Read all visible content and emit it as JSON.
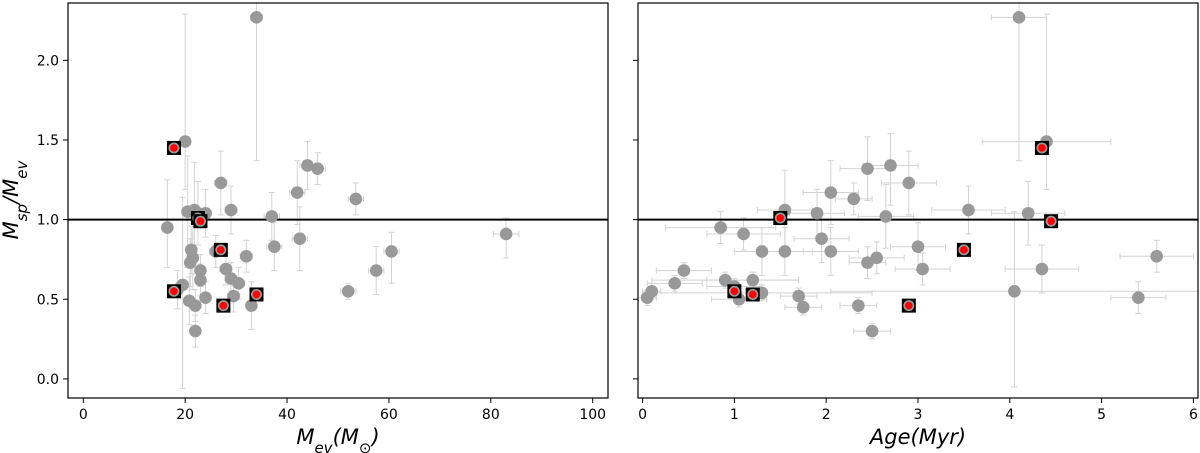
{
  "chart_data": [
    {
      "type": "scatter",
      "xlabel": "M_ev(M_⊙)",
      "ylabel": "M_sp/M_ev",
      "xlim": [
        -3,
        103
      ],
      "ylim": [
        -0.12,
        2.36
      ],
      "xticks": [
        "0",
        "20",
        "40",
        "60",
        "80",
        "100"
      ],
      "yticks": [
        "0.0",
        "0.5",
        "1.0",
        "1.5",
        "2.0"
      ],
      "reference_line": 1.0,
      "grid": false,
      "colors": {
        "points": "#999999",
        "errorbars": "#d3d3d3",
        "highlight_fill": "#ff0000",
        "highlight_box": "#000000",
        "reference_line": "#000000"
      },
      "points": [
        {
          "x": 16.5,
          "y": 0.95,
          "xerr": 1.0,
          "yerr": [
            0.25,
            0.3
          ]
        },
        {
          "x": 18.5,
          "y": 0.56,
          "xerr": 1.0,
          "yerr": [
            0.12,
            0.12
          ]
        },
        {
          "x": 19.5,
          "y": 0.59,
          "xerr": 1.2,
          "yerr": [
            0.65,
            0.55
          ]
        },
        {
          "x": 20.0,
          "y": 1.49,
          "xerr": 1.0,
          "yerr": [
            0.3,
            0.8
          ]
        },
        {
          "x": 20.5,
          "y": 1.05,
          "xerr": 1.2,
          "yerr": [
            0.35,
            0.35
          ]
        },
        {
          "x": 20.8,
          "y": 0.49,
          "xerr": 1.0,
          "yerr": [
            0.15,
            0.15
          ]
        },
        {
          "x": 21.0,
          "y": 0.73,
          "xerr": 1.0,
          "yerr": [
            0.15,
            0.15
          ]
        },
        {
          "x": 21.2,
          "y": 0.81,
          "xerr": 1.0,
          "yerr": [
            0.15,
            0.15
          ]
        },
        {
          "x": 21.5,
          "y": 0.76,
          "xerr": 1.0,
          "yerr": [
            0.2,
            0.2
          ]
        },
        {
          "x": 21.8,
          "y": 1.06,
          "xerr": 1.2,
          "yerr": [
            0.3,
            0.3
          ]
        },
        {
          "x": 22.0,
          "y": 0.46,
          "xerr": 1.0,
          "yerr": [
            0.1,
            0.1
          ]
        },
        {
          "x": 22.0,
          "y": 0.3,
          "xerr": 1.0,
          "yerr": [
            0.1,
            0.1
          ]
        },
        {
          "x": 22.5,
          "y": 1.04,
          "xerr": 1.2,
          "yerr": [
            0.2,
            0.2
          ]
        },
        {
          "x": 23.0,
          "y": 0.62,
          "xerr": 1.0,
          "yerr": [
            0.1,
            0.1
          ]
        },
        {
          "x": 23.0,
          "y": 0.68,
          "xerr": 1.0,
          "yerr": [
            0.1,
            0.1
          ]
        },
        {
          "x": 24.0,
          "y": 0.51,
          "xerr": 1.0,
          "yerr": [
            0.1,
            0.1
          ]
        },
        {
          "x": 24.0,
          "y": 1.04,
          "xerr": 1.2,
          "yerr": [
            0.15,
            0.15
          ]
        },
        {
          "x": 26.0,
          "y": 0.8,
          "xerr": 1.2,
          "yerr": [
            0.1,
            0.1
          ]
        },
        {
          "x": 27.0,
          "y": 1.23,
          "xerr": 1.2,
          "yerr": [
            0.2,
            0.2
          ]
        },
        {
          "x": 28.0,
          "y": 0.69,
          "xerr": 1.2,
          "yerr": [
            0.1,
            0.1
          ]
        },
        {
          "x": 29.0,
          "y": 1.06,
          "xerr": 1.2,
          "yerr": [
            0.15,
            0.15
          ]
        },
        {
          "x": 29.0,
          "y": 0.63,
          "xerr": 1.2,
          "yerr": [
            0.1,
            0.1
          ]
        },
        {
          "x": 29.5,
          "y": 0.52,
          "xerr": 1.2,
          "yerr": [
            0.1,
            0.1
          ]
        },
        {
          "x": 30.5,
          "y": 0.6,
          "xerr": 1.2,
          "yerr": [
            0.1,
            0.1
          ]
        },
        {
          "x": 32.0,
          "y": 0.77,
          "xerr": 1.2,
          "yerr": [
            0.1,
            0.1
          ]
        },
        {
          "x": 33.0,
          "y": 0.46,
          "xerr": 1.0,
          "yerr": [
            0.15,
            0.15
          ]
        },
        {
          "x": 34.0,
          "y": 2.27,
          "xerr": 1.2,
          "yerr": [
            0.9,
            0.6
          ]
        },
        {
          "x": 37.0,
          "y": 1.02,
          "xerr": 1.5,
          "yerr": [
            0.15,
            0.15
          ]
        },
        {
          "x": 37.5,
          "y": 0.83,
          "xerr": 1.5,
          "yerr": [
            0.15,
            0.15
          ]
        },
        {
          "x": 42.0,
          "y": 1.17,
          "xerr": 1.5,
          "yerr": [
            0.2,
            0.2
          ]
        },
        {
          "x": 42.5,
          "y": 0.88,
          "xerr": 1.5,
          "yerr": [
            0.2,
            0.2
          ]
        },
        {
          "x": 44.0,
          "y": 1.34,
          "xerr": 1.5,
          "yerr": [
            0.15,
            0.15
          ]
        },
        {
          "x": 46.0,
          "y": 1.32,
          "xerr": 1.5,
          "yerr": [
            0.1,
            0.1
          ]
        },
        {
          "x": 52.0,
          "y": 0.55,
          "xerr": 1.5,
          "yerr": [
            0.05,
            0.05
          ]
        },
        {
          "x": 53.5,
          "y": 1.13,
          "xerr": 1.5,
          "yerr": [
            0.1,
            0.1
          ]
        },
        {
          "x": 57.5,
          "y": 0.68,
          "xerr": 1.5,
          "yerr": [
            0.15,
            0.15
          ]
        },
        {
          "x": 60.5,
          "y": 0.8,
          "xerr": 1.5,
          "yerr": [
            0.2,
            0.12
          ]
        },
        {
          "x": 83.0,
          "y": 0.91,
          "xerr": 2.5,
          "yerr": [
            0.15,
            0.1
          ]
        }
      ],
      "highlighted": [
        {
          "x": 17.8,
          "y": 1.45
        },
        {
          "x": 17.8,
          "y": 0.55
        },
        {
          "x": 22.5,
          "y": 1.01
        },
        {
          "x": 23.0,
          "y": 0.99
        },
        {
          "x": 27.0,
          "y": 0.81
        },
        {
          "x": 27.5,
          "y": 0.46
        },
        {
          "x": 34.0,
          "y": 0.53
        }
      ]
    },
    {
      "type": "scatter",
      "xlabel": "Age(Myr)",
      "ylabel": "",
      "xlim": [
        -0.05,
        6.05
      ],
      "ylim": [
        -0.12,
        2.36
      ],
      "xticks": [
        "0",
        "1",
        "2",
        "3",
        "4",
        "5",
        "6"
      ],
      "yticks": [
        "0.0",
        "0.5",
        "1.0",
        "1.5",
        "2.0"
      ],
      "reference_line": 1.0,
      "grid": false,
      "points": [
        {
          "x": 0.05,
          "y": 0.51,
          "xerr": 0.1,
          "yerr": [
            0.05,
            0.05
          ]
        },
        {
          "x": 0.1,
          "y": 0.55,
          "xerr": 0.1,
          "yerr": [
            0.05,
            0.05
          ]
        },
        {
          "x": 0.35,
          "y": 0.6,
          "xerr": 0.3,
          "yerr": [
            0.05,
            0.05
          ]
        },
        {
          "x": 0.45,
          "y": 0.68,
          "xerr": 0.3,
          "yerr": [
            0.05,
            0.05
          ]
        },
        {
          "x": 0.85,
          "y": 0.95,
          "xerr": 0.6,
          "yerr": [
            0.1,
            0.1
          ]
        },
        {
          "x": 0.9,
          "y": 0.62,
          "xerr": 0.8,
          "yerr": [
            0.05,
            0.05
          ]
        },
        {
          "x": 1.0,
          "y": 0.58,
          "xerr": 0.3,
          "yerr": [
            0.05,
            0.05
          ]
        },
        {
          "x": 1.05,
          "y": 0.5,
          "xerr": 0.3,
          "yerr": [
            0.05,
            0.05
          ]
        },
        {
          "x": 1.1,
          "y": 0.91,
          "xerr": 0.4,
          "yerr": [
            0.1,
            0.1
          ]
        },
        {
          "x": 1.2,
          "y": 0.62,
          "xerr": 0.5,
          "yerr": [
            0.05,
            0.05
          ]
        },
        {
          "x": 1.3,
          "y": 0.54,
          "xerr": 1.2,
          "yerr": [
            0.05,
            0.05
          ]
        },
        {
          "x": 1.3,
          "y": 0.8,
          "xerr": 0.3,
          "yerr": [
            0.15,
            0.15
          ]
        },
        {
          "x": 1.55,
          "y": 1.06,
          "xerr": 0.3,
          "yerr": [
            0.25,
            0.25
          ]
        },
        {
          "x": 1.55,
          "y": 0.8,
          "xerr": 0.3,
          "yerr": [
            0.15,
            0.15
          ]
        },
        {
          "x": 1.7,
          "y": 0.52,
          "xerr": 0.2,
          "yerr": [
            0.05,
            0.05
          ]
        },
        {
          "x": 1.75,
          "y": 0.45,
          "xerr": 0.2,
          "yerr": [
            0.05,
            0.05
          ]
        },
        {
          "x": 1.9,
          "y": 1.04,
          "xerr": 0.3,
          "yerr": [
            0.15,
            0.15
          ]
        },
        {
          "x": 1.95,
          "y": 0.88,
          "xerr": 0.3,
          "yerr": [
            0.15,
            0.15
          ]
        },
        {
          "x": 2.05,
          "y": 0.8,
          "xerr": 0.3,
          "yerr": [
            0.15,
            0.15
          ]
        },
        {
          "x": 2.05,
          "y": 1.17,
          "xerr": 0.3,
          "yerr": [
            0.2,
            0.2
          ]
        },
        {
          "x": 2.3,
          "y": 1.13,
          "xerr": 0.2,
          "yerr": [
            0.1,
            0.1
          ]
        },
        {
          "x": 2.35,
          "y": 0.46,
          "xerr": 0.2,
          "yerr": [
            0.05,
            0.05
          ]
        },
        {
          "x": 2.45,
          "y": 1.32,
          "xerr": 0.3,
          "yerr": [
            0.2,
            0.2
          ]
        },
        {
          "x": 2.45,
          "y": 0.73,
          "xerr": 0.2,
          "yerr": [
            0.1,
            0.1
          ]
        },
        {
          "x": 2.5,
          "y": 0.3,
          "xerr": 0.2,
          "yerr": [
            0.05,
            0.05
          ]
        },
        {
          "x": 2.55,
          "y": 0.76,
          "xerr": 0.3,
          "yerr": [
            0.1,
            0.1
          ]
        },
        {
          "x": 2.65,
          "y": 1.02,
          "xerr": 0.3,
          "yerr": [
            0.2,
            0.2
          ]
        },
        {
          "x": 2.7,
          "y": 1.34,
          "xerr": 0.3,
          "yerr": [
            0.25,
            0.2
          ]
        },
        {
          "x": 2.9,
          "y": 1.23,
          "xerr": 0.3,
          "yerr": [
            0.2,
            0.2
          ]
        },
        {
          "x": 3.0,
          "y": 0.83,
          "xerr": 0.3,
          "yerr": [
            0.15,
            0.15
          ]
        },
        {
          "x": 3.05,
          "y": 0.69,
          "xerr": 0.3,
          "yerr": [
            0.1,
            0.1
          ]
        },
        {
          "x": 3.55,
          "y": 1.06,
          "xerr": 0.4,
          "yerr": [
            0.15,
            0.15
          ]
        },
        {
          "x": 4.05,
          "y": 0.55,
          "xerr": 2.0,
          "yerr": [
            0.6,
            0.5
          ]
        },
        {
          "x": 4.1,
          "y": 2.27,
          "xerr": 0.3,
          "yerr": [
            0.9,
            0.6
          ]
        },
        {
          "x": 4.2,
          "y": 1.04,
          "xerr": 0.4,
          "yerr": [
            0.2,
            0.2
          ]
        },
        {
          "x": 4.35,
          "y": 0.69,
          "xerr": 0.4,
          "yerr": [
            0.15,
            0.15
          ]
        },
        {
          "x": 4.4,
          "y": 1.49,
          "xerr": 0.7,
          "yerr": [
            0.3,
            0.8
          ]
        },
        {
          "x": 5.4,
          "y": 0.51,
          "xerr": 0.3,
          "yerr": [
            0.1,
            0.1
          ]
        },
        {
          "x": 5.6,
          "y": 0.77,
          "xerr": 0.4,
          "yerr": [
            0.1,
            0.1
          ]
        }
      ],
      "highlighted": [
        {
          "x": 1.0,
          "y": 0.55
        },
        {
          "x": 1.2,
          "y": 0.53
        },
        {
          "x": 1.5,
          "y": 1.01
        },
        {
          "x": 2.9,
          "y": 0.46
        },
        {
          "x": 3.5,
          "y": 0.81
        },
        {
          "x": 4.35,
          "y": 1.45
        },
        {
          "x": 4.45,
          "y": 0.99
        }
      ]
    }
  ]
}
